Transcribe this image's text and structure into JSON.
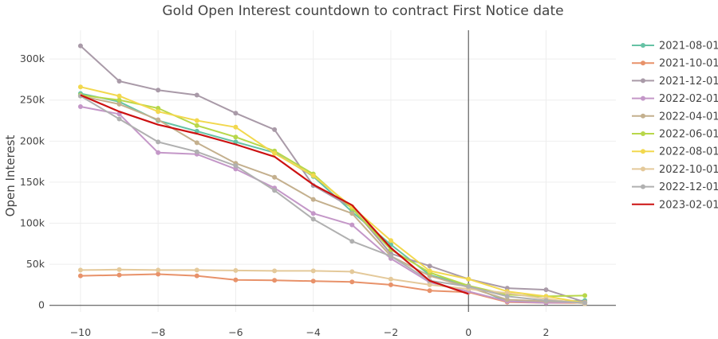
{
  "chart_data": {
    "type": "line",
    "title": "Gold Open Interest countdown to contract First Notice date",
    "xlabel": "",
    "ylabel": "Open Interest",
    "xlim": [
      -10.8,
      3.8
    ],
    "ylim": [
      -8000,
      335000
    ],
    "x_ticks": [
      -10,
      -8,
      -6,
      -4,
      -2,
      0,
      2
    ],
    "x_tick_labels": [
      "−10",
      "−8",
      "−6",
      "−4",
      "−2",
      "0",
      "2"
    ],
    "y_ticks": [
      0,
      50000,
      100000,
      150000,
      200000,
      250000,
      300000
    ],
    "y_tick_labels": [
      "0",
      "50k",
      "100k",
      "150k",
      "200k",
      "250k",
      "300k"
    ],
    "vertical_line_at": 0,
    "grid": true,
    "legend_position": "right",
    "x": [
      -10,
      -9,
      -8,
      -7,
      -6,
      -5,
      -4,
      -3,
      -2,
      -1,
      0,
      1,
      2,
      3
    ],
    "series": [
      {
        "name": "2021-08-01",
        "color": "#66c2a5",
        "values": [
          258000,
          248000,
          225000,
          212000,
          199000,
          186000,
          157000,
          114000,
          74000,
          37000,
          24000,
          5000,
          4000,
          6000
        ]
      },
      {
        "name": "2021-10-01",
        "color": "#e8926a",
        "values": [
          36000,
          37000,
          38000,
          36000,
          31000,
          30500,
          29500,
          28500,
          25000,
          18000,
          16000,
          4000,
          3000,
          3000
        ]
      },
      {
        "name": "2021-12-01",
        "color": "#a99aa8",
        "values": [
          316000,
          273000,
          262000,
          256000,
          234000,
          214000,
          146000,
          119000,
          63000,
          48000,
          32000,
          21000,
          19000,
          4000
        ]
      },
      {
        "name": "2022-02-01",
        "color": "#c497c8",
        "values": [
          242000,
          233000,
          186000,
          184000,
          166000,
          143000,
          112000,
          98000,
          57000,
          28000,
          17000,
          5000,
          3000,
          4000
        ]
      },
      {
        "name": "2022-04-01",
        "color": "#c4b08e",
        "values": [
          255000,
          245000,
          226000,
          198000,
          173000,
          156000,
          129000,
          112000,
          60000,
          36000,
          22000,
          7000,
          5000,
          4000
        ]
      },
      {
        "name": "2022-06-01",
        "color": "#b8d74a",
        "values": [
          256000,
          250000,
          240000,
          219000,
          205000,
          188000,
          160000,
          118000,
          68000,
          40000,
          24000,
          13000,
          11000,
          12000
        ]
      },
      {
        "name": "2022-08-01",
        "color": "#f2d84e",
        "values": [
          266000,
          255000,
          236000,
          225000,
          217000,
          185000,
          158000,
          120000,
          79000,
          42000,
          32000,
          17000,
          11000,
          3000
        ]
      },
      {
        "name": "2022-10-01",
        "color": "#e4c99a",
        "values": [
          43000,
          43500,
          43000,
          43000,
          42500,
          42000,
          42000,
          41000,
          32000,
          25000,
          20000,
          15000,
          8000,
          2000
        ]
      },
      {
        "name": "2022-12-01",
        "color": "#b0b0b0",
        "values": [
          255000,
          227000,
          199000,
          187000,
          170000,
          140000,
          105000,
          78000,
          60000,
          30000,
          23000,
          11000,
          6000,
          3000
        ]
      },
      {
        "name": "2023-02-01",
        "color": "#cc1111",
        "values": [
          256000,
          236000,
          220000,
          209000,
          196000,
          181000,
          147000,
          122000,
          70000,
          30000,
          14000,
          null,
          null,
          null
        ]
      }
    ]
  }
}
